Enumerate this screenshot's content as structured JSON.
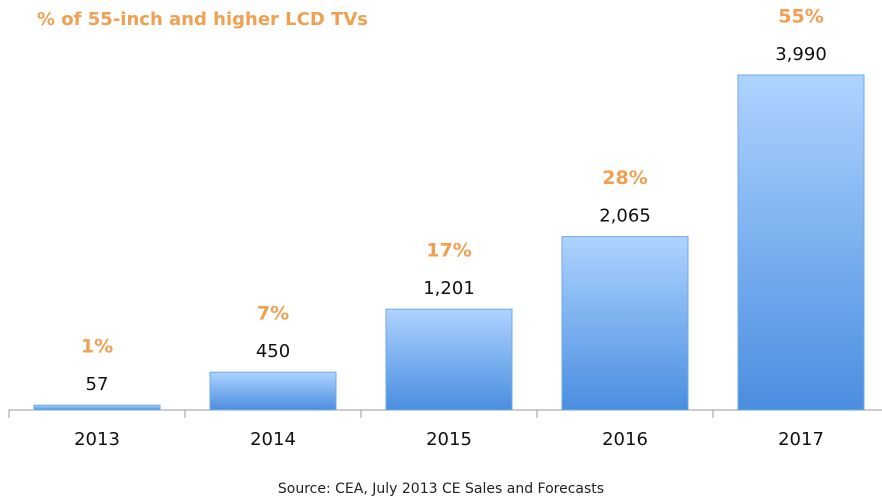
{
  "chart_data": {
    "type": "bar",
    "categories": [
      "2013",
      "2014",
      "2015",
      "2016",
      "2017"
    ],
    "values": [
      57,
      450,
      1201,
      2065,
      3990
    ],
    "value_labels": [
      "57",
      "450",
      "1,201",
      "2,065",
      "3,990"
    ],
    "color": "#4a8ee0",
    "share_title": "% of 55-inch and higher LCD TVs",
    "share_values": [
      1,
      7,
      17,
      28,
      55
    ],
    "share_value_labels": [
      "1%",
      "7%",
      "17%",
      "28%",
      "55%"
    ],
    "share_color": "#f0a050",
    "source": "Source: CEA, July 2013 CE Sales and Forecasts"
  }
}
